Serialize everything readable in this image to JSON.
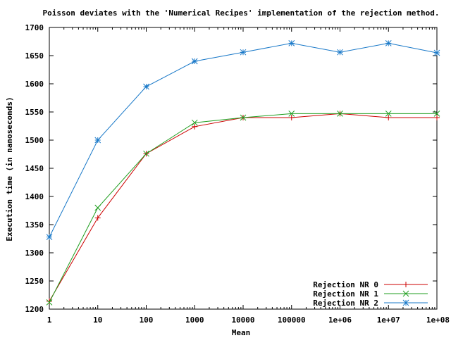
{
  "chart_data": {
    "type": "line",
    "title": "Poisson deviates with the 'Numerical Recipes' implementation of the rejection method.",
    "xlabel": "Mean",
    "ylabel": "Execution time (in nanoseconds)",
    "x_scale": "log",
    "x": [
      1,
      10,
      100,
      1000,
      10000,
      100000,
      1000000,
      10000000,
      100000000
    ],
    "xtick_labels": [
      "1",
      "10",
      "100",
      "1000",
      "10000",
      "100000",
      "1e+06",
      "1e+07",
      "1e+08"
    ],
    "ylim": [
      1200,
      1700
    ],
    "yticks": [
      1200,
      1250,
      1300,
      1350,
      1400,
      1450,
      1500,
      1550,
      1600,
      1650,
      1700
    ],
    "grid": false,
    "legend_position": "bottom-right",
    "series": [
      {
        "name": "Rejection NR 0",
        "color": "#cc0000",
        "marker": "plus",
        "values": [
          1214,
          1362,
          1476,
          1524,
          1540,
          1540,
          1547,
          1540,
          1540
        ]
      },
      {
        "name": "Rejection NR 1",
        "color": "#1f9e1f",
        "marker": "cross",
        "values": [
          1212,
          1380,
          1476,
          1531,
          1540,
          1547,
          1547,
          1547,
          1547
        ]
      },
      {
        "name": "Rejection NR 2",
        "color": "#1878c8",
        "marker": "star",
        "values": [
          1328,
          1500,
          1595,
          1640,
          1656,
          1672,
          1656,
          1672,
          1655
        ]
      }
    ]
  }
}
